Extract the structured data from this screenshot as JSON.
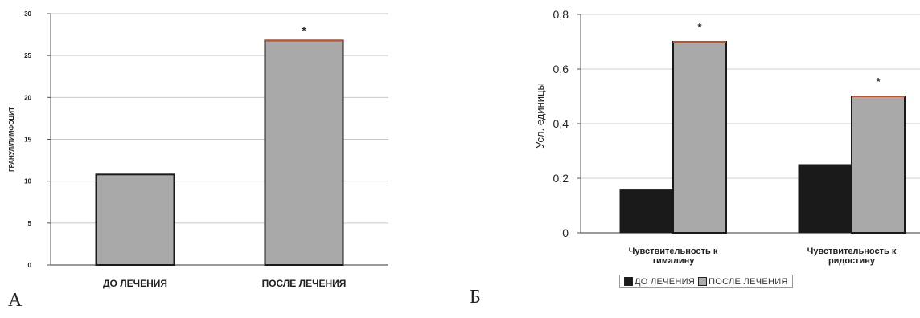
{
  "chart_data": [
    {
      "panel_label": "А",
      "type": "bar",
      "categories": [
        "ДО ЛЕЧЕНИЯ",
        "ПОСЛЕ ЛЕЧЕНИЯ"
      ],
      "values": [
        10.8,
        26.8
      ],
      "ylabel": "ГРАНУЛ/ЛИМФОЦИТ",
      "ylim": [
        0,
        30
      ],
      "yticks": [
        "0",
        "5",
        "10",
        "15",
        "20",
        "25",
        "30"
      ],
      "annotations": [
        "",
        "*"
      ],
      "grid": true,
      "colors": {
        "bar_fill": "#a9a9a9",
        "bar_edge": "#1a1a1a",
        "highlight_edge": "#c0502a"
      }
    },
    {
      "panel_label": "Б",
      "type": "bar",
      "categories": [
        "Чувствительность к тималину",
        "Чувствительность к ридостину"
      ],
      "category_lines": [
        [
          "Чувствительность к",
          "тималину"
        ],
        [
          "Чувствительность к",
          "ридостину"
        ]
      ],
      "series": [
        {
          "name": "ДО ЛЕЧЕНИЯ",
          "values": [
            0.16,
            0.25
          ],
          "color": "#1a1a1a"
        },
        {
          "name": "ПОСЛЕ ЛЕЧЕНИЯ",
          "values": [
            0.7,
            0.5
          ],
          "color": "#a9a9a9"
        }
      ],
      "ylabel": "Усл. единицы",
      "ylim": [
        0,
        0.8
      ],
      "yticks": [
        "0",
        "0,2",
        "0,4",
        "0,6",
        "0,8"
      ],
      "annotations": [
        "*",
        "*"
      ],
      "grid": true,
      "legend_position": "bottom"
    }
  ]
}
